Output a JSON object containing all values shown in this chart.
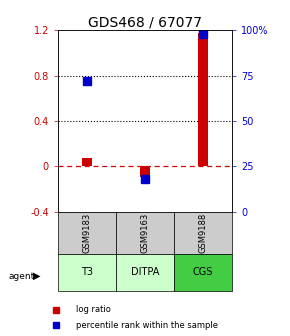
{
  "title": "GDS468 / 67077",
  "samples": [
    "GSM9183",
    "GSM9163",
    "GSM9188"
  ],
  "agents": [
    "T3",
    "DITPA",
    "CGS"
  ],
  "log_ratios": [
    0.07,
    -0.09,
    1.18
  ],
  "percentile_ranks_scaled": [
    72,
    18,
    98
  ],
  "ylim_left": [
    -0.4,
    1.2
  ],
  "ylim_right": [
    0,
    100
  ],
  "yticks_left": [
    -0.4,
    0.0,
    0.4,
    0.8,
    1.2
  ],
  "yticks_right": [
    0,
    25,
    50,
    75,
    100
  ],
  "ytick_labels_left": [
    "-0.4",
    "0",
    "0.4",
    "0.8",
    "1.2"
  ],
  "ytick_labels_right": [
    "0",
    "25",
    "50",
    "75",
    "100%"
  ],
  "bar_color_log": "#cc0000",
  "bar_color_pct": "#0000cc",
  "hline_color": "#cc0000",
  "dotted_line_color": "#000000",
  "sample_box_color": "#cccccc",
  "agent_colors": [
    "#ccffcc",
    "#ccffcc",
    "#44cc44"
  ],
  "bar_width": 0.18,
  "marker_size": 6,
  "title_fontsize": 10,
  "tick_fontsize": 7,
  "sample_fontsize": 6,
  "agent_fontsize": 7,
  "legend_fontsize": 6
}
